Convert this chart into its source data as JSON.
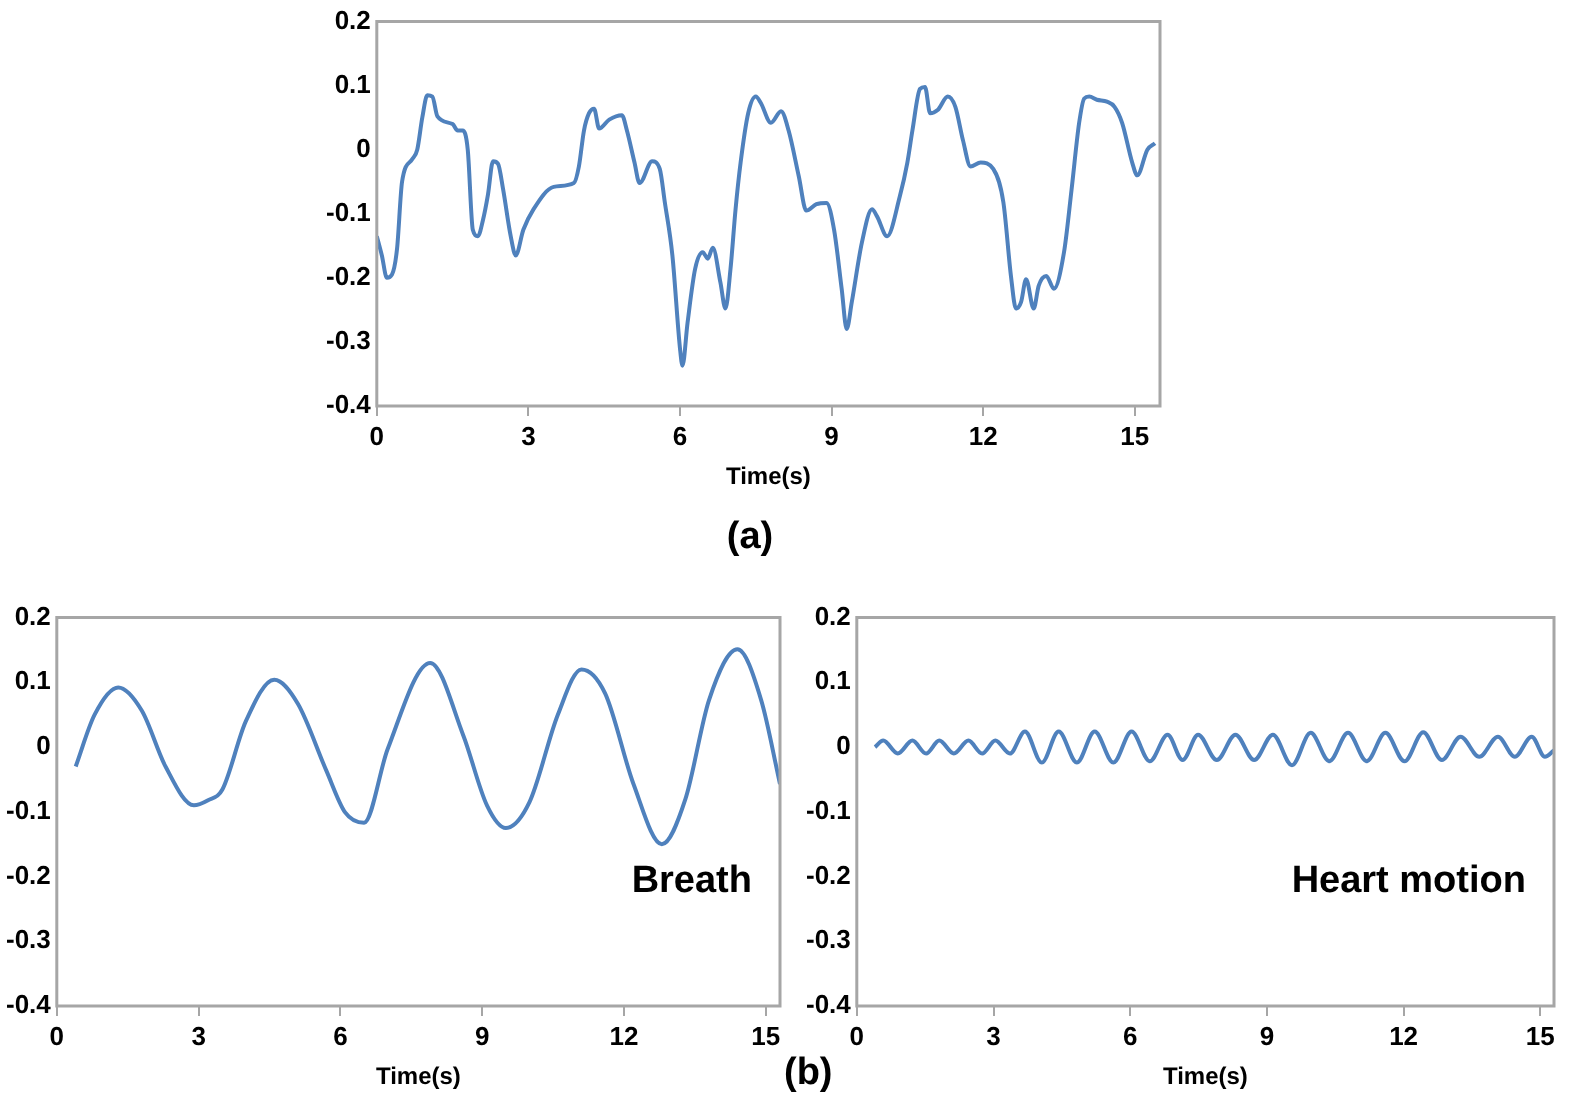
{
  "chart_data": [
    {
      "type": "line",
      "xlabel": "Time(s)",
      "annotations": [
        "(a)"
      ],
      "xlim": [
        0,
        15.5
      ],
      "xticks": [
        0,
        3,
        6,
        9,
        12,
        15
      ],
      "ylim": [
        -0.4,
        0.2
      ],
      "yticks": [
        -0.4,
        -0.3,
        -0.2,
        -0.1,
        0,
        0.1,
        0.2
      ],
      "grid": false,
      "legend": false,
      "marker": "none",
      "line_style": "solid",
      "series": [
        {
          "color": "#4f81bd",
          "x": [
            0,
            0.1,
            0.2,
            0.3,
            0.4,
            0.5,
            0.7,
            0.8,
            0.9,
            1.0,
            1.1,
            1.2,
            1.5,
            1.6,
            1.7,
            1.8,
            1.9,
            2.0,
            2.1,
            2.2,
            2.3,
            2.4,
            2.5,
            2.65,
            2.75,
            2.9,
            3.1,
            3.5,
            3.9,
            4.0,
            4.1,
            4.2,
            4.3,
            4.4,
            4.6,
            4.85,
            4.95,
            5.1,
            5.2,
            5.45,
            5.6,
            5.7,
            5.85,
            6.0,
            6.05,
            6.15,
            6.3,
            6.45,
            6.55,
            6.65,
            6.8,
            6.9,
            7.0,
            7.1,
            7.2,
            7.35,
            7.5,
            7.6,
            7.8,
            8.0,
            8.15,
            8.35,
            8.5,
            8.7,
            8.9,
            9.05,
            9.2,
            9.3,
            9.4,
            9.6,
            9.8,
            9.9,
            10.1,
            10.35,
            10.5,
            10.6,
            10.75,
            10.85,
            10.95,
            11.1,
            11.3,
            11.45,
            11.6,
            11.75,
            11.95,
            12.2,
            12.4,
            12.55,
            12.65,
            12.75,
            12.85,
            13.0,
            13.1,
            13.25,
            13.4,
            13.6,
            13.75,
            13.9,
            14.0,
            14.1,
            14.25,
            14.45,
            14.6,
            14.75,
            14.95,
            15.05,
            15.25,
            15.4
          ],
          "values": [
            -0.135,
            -0.165,
            -0.2,
            -0.195,
            -0.155,
            -0.05,
            -0.015,
            0,
            0.05,
            0.085,
            0.083,
            0.052,
            0.04,
            0.03,
            0.03,
            0,
            -0.125,
            -0.135,
            -0.11,
            -0.07,
            -0.018,
            -0.022,
            -0.062,
            -0.135,
            -0.165,
            -0.125,
            -0.093,
            -0.058,
            -0.052,
            -0.026,
            0.03,
            0.057,
            0.064,
            0.033,
            0.047,
            0.054,
            0.03,
            -0.02,
            -0.052,
            -0.018,
            -0.03,
            -0.082,
            -0.165,
            -0.31,
            -0.337,
            -0.27,
            -0.186,
            -0.16,
            -0.17,
            -0.153,
            -0.207,
            -0.248,
            -0.186,
            -0.093,
            -0.02,
            0.057,
            0.083,
            0.073,
            0.042,
            0.06,
            0.03,
            -0.041,
            -0.095,
            -0.085,
            -0.083,
            -0.125,
            -0.217,
            -0.28,
            -0.238,
            -0.145,
            -0.093,
            -0.104,
            -0.135,
            -0.073,
            -0.02,
            0.03,
            0.095,
            0.098,
            0.057,
            0.062,
            0.083,
            0.067,
            0.015,
            -0.026,
            -0.02,
            -0.03,
            -0.082,
            -0.197,
            -0.248,
            -0.238,
            -0.202,
            -0.248,
            -0.212,
            -0.197,
            -0.217,
            -0.16,
            -0.062,
            0.042,
            0.08,
            0.083,
            0.078,
            0.075,
            0.067,
            0.042,
            -0.02,
            -0.04,
            0,
            0.01
          ]
        }
      ]
    },
    {
      "type": "line",
      "xlabel": "Time(s)",
      "annotations": [
        "(b)"
      ],
      "xlim": [
        0,
        15.3
      ],
      "xticks": [
        0,
        3,
        6,
        9,
        12,
        15
      ],
      "ylim": [
        -0.4,
        0.2
      ],
      "yticks": [
        -0.4,
        -0.3,
        -0.2,
        -0.1,
        0,
        0.1,
        0.2
      ],
      "grid": false,
      "legend": false,
      "marker": "none",
      "line_style": "solid",
      "series": [
        {
          "name": "Breath",
          "color": "#4f81bd",
          "x": [
            0.4,
            0.8,
            1.3,
            1.8,
            2.3,
            2.9,
            3.2,
            3.5,
            4.0,
            4.6,
            5.1,
            5.7,
            6.1,
            6.5,
            7.0,
            7.9,
            8.6,
            9.1,
            9.5,
            10.0,
            10.6,
            11.1,
            11.6,
            12.2,
            12.8,
            13.3,
            13.8,
            14.4,
            14.9,
            15.3
          ],
          "values": [
            -0.03,
            0.05,
            0.092,
            0.056,
            -0.03,
            -0.09,
            -0.082,
            -0.066,
            0.04,
            0.104,
            0.067,
            -0.036,
            -0.101,
            -0.117,
            -0.003,
            0.13,
            0.018,
            -0.09,
            -0.125,
            -0.085,
            0.05,
            0.12,
            0.083,
            -0.057,
            -0.15,
            -0.08,
            0.073,
            0.151,
            0.073,
            -0.057
          ]
        }
      ]
    },
    {
      "type": "line",
      "xlabel": "Time(s)",
      "xlim": [
        0,
        15.3
      ],
      "xticks": [
        0,
        3,
        6,
        9,
        12,
        15
      ],
      "ylim": [
        -0.4,
        0.2
      ],
      "yticks": [
        -0.4,
        -0.3,
        -0.2,
        -0.1,
        0,
        0.1,
        0.2
      ],
      "grid": false,
      "legend": false,
      "marker": "none",
      "line_style": "solid",
      "series": [
        {
          "name": "Heart motion",
          "color": "#4f81bd",
          "x": [
            0.4,
            0.58,
            0.9,
            1.22,
            1.52,
            1.81,
            2.13,
            2.45,
            2.75,
            3.04,
            3.36,
            3.69,
            4.06,
            4.43,
            4.83,
            5.22,
            5.63,
            6.03,
            6.43,
            6.82,
            7.15,
            7.49,
            7.9,
            8.31,
            8.72,
            9.13,
            9.55,
            9.96,
            10.37,
            10.78,
            11.19,
            11.6,
            12.02,
            12.43,
            12.84,
            13.25,
            13.66,
            14.07,
            14.44,
            14.81,
            15.1,
            15.3
          ],
          "values": [
            0,
            0.01,
            -0.01,
            0.01,
            -0.01,
            0.01,
            -0.01,
            0.01,
            -0.01,
            0.01,
            -0.01,
            0.024,
            -0.024,
            0.024,
            -0.024,
            0.024,
            -0.024,
            0.024,
            -0.022,
            0.019,
            -0.02,
            0.019,
            -0.02,
            0.019,
            -0.02,
            0.019,
            -0.028,
            0.022,
            -0.022,
            0.022,
            -0.022,
            0.022,
            -0.022,
            0.023,
            -0.02,
            0.016,
            -0.015,
            0.016,
            -0.015,
            0.016,
            -0.015,
            -0.005
          ]
        }
      ]
    }
  ]
}
